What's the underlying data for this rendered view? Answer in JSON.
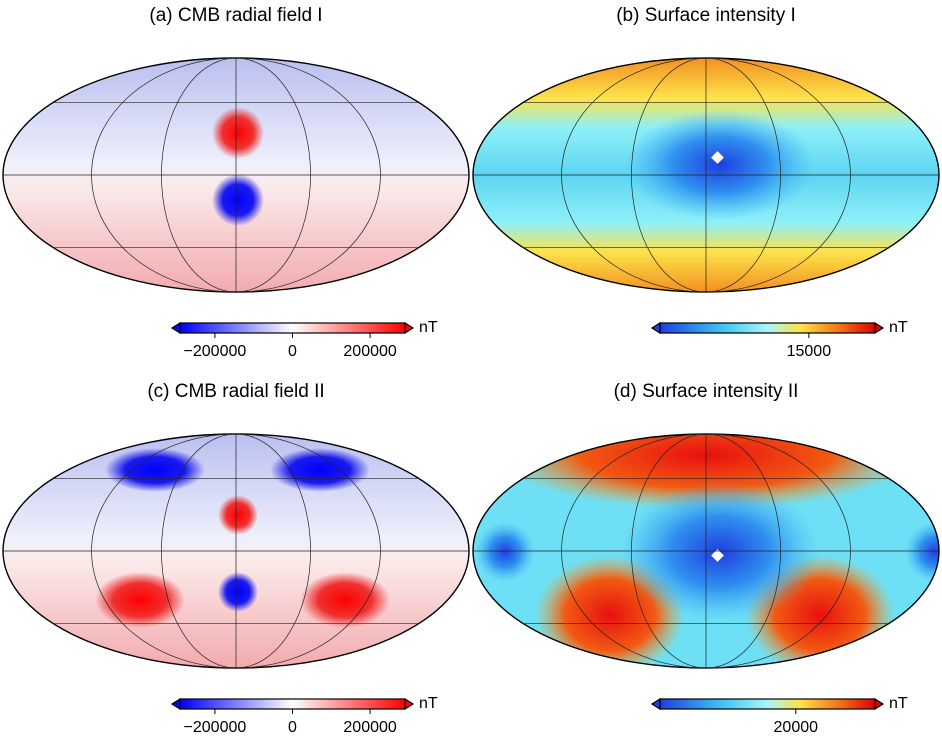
{
  "panels": [
    {
      "title": "(a) CMB radial field I",
      "colorbar": {
        "scale": "diverging",
        "lim": [
          -290000,
          290000
        ],
        "ticks": [
          {
            "value": -200000,
            "label": "−200000"
          },
          0,
          200000
        ],
        "unit": "nT"
      }
    },
    {
      "title": "(b) Surface intensity I",
      "colorbar": {
        "scale": "intensity",
        "lim": [
          6000,
          19000
        ],
        "ticks": [
          15000
        ],
        "unit": "nT"
      }
    },
    {
      "title": "(c) CMB radial field II",
      "colorbar": {
        "scale": "diverging",
        "lim": [
          -290000,
          290000
        ],
        "ticks": [
          {
            "value": -200000,
            "label": "−200000"
          },
          0,
          200000
        ],
        "unit": "nT"
      }
    },
    {
      "title": "(d) Surface intensity II",
      "colorbar": {
        "scale": "intensity",
        "lim": [
          8000,
          27000
        ],
        "ticks": [
          20000
        ],
        "unit": "nT"
      }
    }
  ]
}
